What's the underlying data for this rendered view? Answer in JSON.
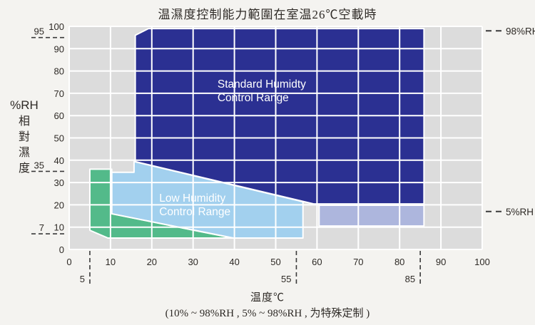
{
  "colors": {
    "page_bg": "#f4f3f0",
    "plot_bg": "#dcdcdc",
    "grid": "#ffffff",
    "text": "#2e2a26",
    "dash": "#3a3a3a",
    "standard_navy": "#2b3092",
    "low_blue": "#a2d0ee",
    "green": "#53ba8a",
    "lavender": "#adb6dd"
  },
  "chart_data": {
    "type": "area",
    "title": "温濕度控制能力範圍在室温26℃空載時",
    "xlabel": "温度℃",
    "ylabel_rh": "%RH",
    "ylabel_cjk": "相對濕度",
    "footnote": "(10% ~ 98%RH , 5% ~ 98%RH , 为特殊定制 )",
    "xlim": [
      0,
      100
    ],
    "ylim": [
      0,
      100
    ],
    "x_ticks": [
      0,
      10,
      20,
      30,
      40,
      50,
      60,
      70,
      80,
      90,
      100
    ],
    "y_ticks": [
      0,
      10,
      20,
      30,
      40,
      50,
      60,
      70,
      80,
      90,
      100
    ],
    "grid": true,
    "dashed_x_guides": [
      {
        "value": 5,
        "label": "5"
      },
      {
        "value": 55,
        "label": "55"
      },
      {
        "value": 85,
        "label": "85"
      }
    ],
    "dashed_y_guides": [
      {
        "value": 95,
        "label": "95"
      },
      {
        "value": 35,
        "label": "35"
      },
      {
        "value": 7,
        "label": "7"
      }
    ],
    "right_markers": [
      {
        "label": "98%RH",
        "at": 98
      },
      {
        "label": "5%RH",
        "at": 17
      }
    ],
    "regions": [
      {
        "name": "low-humidity-control-range",
        "color_key": "low_blue",
        "label_lines": [
          "Low Humidity",
          "Control Range"
        ],
        "label_pos": {
          "x": 21.8,
          "y": 21.4
        },
        "points": [
          [
            10.3,
            34.6
          ],
          [
            15.7,
            34.6
          ],
          [
            15.7,
            39.4
          ],
          [
            56.6,
            21.4
          ],
          [
            56.6,
            5.1
          ],
          [
            39.7,
            5.1
          ],
          [
            10.3,
            16
          ]
        ]
      },
      {
        "name": "green-extended-low-range",
        "color_key": "green",
        "label_lines": [],
        "label_pos": null,
        "points": [
          [
            5,
            36
          ],
          [
            10.3,
            36
          ],
          [
            10.3,
            16
          ],
          [
            39.7,
            5.1
          ],
          [
            9.4,
            5.1
          ],
          [
            5,
            8.6
          ]
        ]
      },
      {
        "name": "special-order-band",
        "color_key": "lavender",
        "label_lines": [],
        "label_pos": null,
        "points": [
          [
            60.5,
            19.8
          ],
          [
            85.9,
            19.8
          ],
          [
            85.9,
            10.5
          ],
          [
            60.5,
            10.5
          ]
        ]
      },
      {
        "name": "standard-humidity-control-range",
        "color_key": "standard_navy",
        "label_lines": [
          "Standard  Humidty",
          "Control Range"
        ],
        "label_pos": {
          "x": 35.9,
          "y": 72.5
        },
        "points": [
          [
            16,
            96
          ],
          [
            19.2,
            99
          ],
          [
            85.9,
            99
          ],
          [
            85.9,
            20.4
          ],
          [
            59.2,
            20.4
          ],
          [
            16,
            39.4
          ]
        ]
      }
    ]
  }
}
